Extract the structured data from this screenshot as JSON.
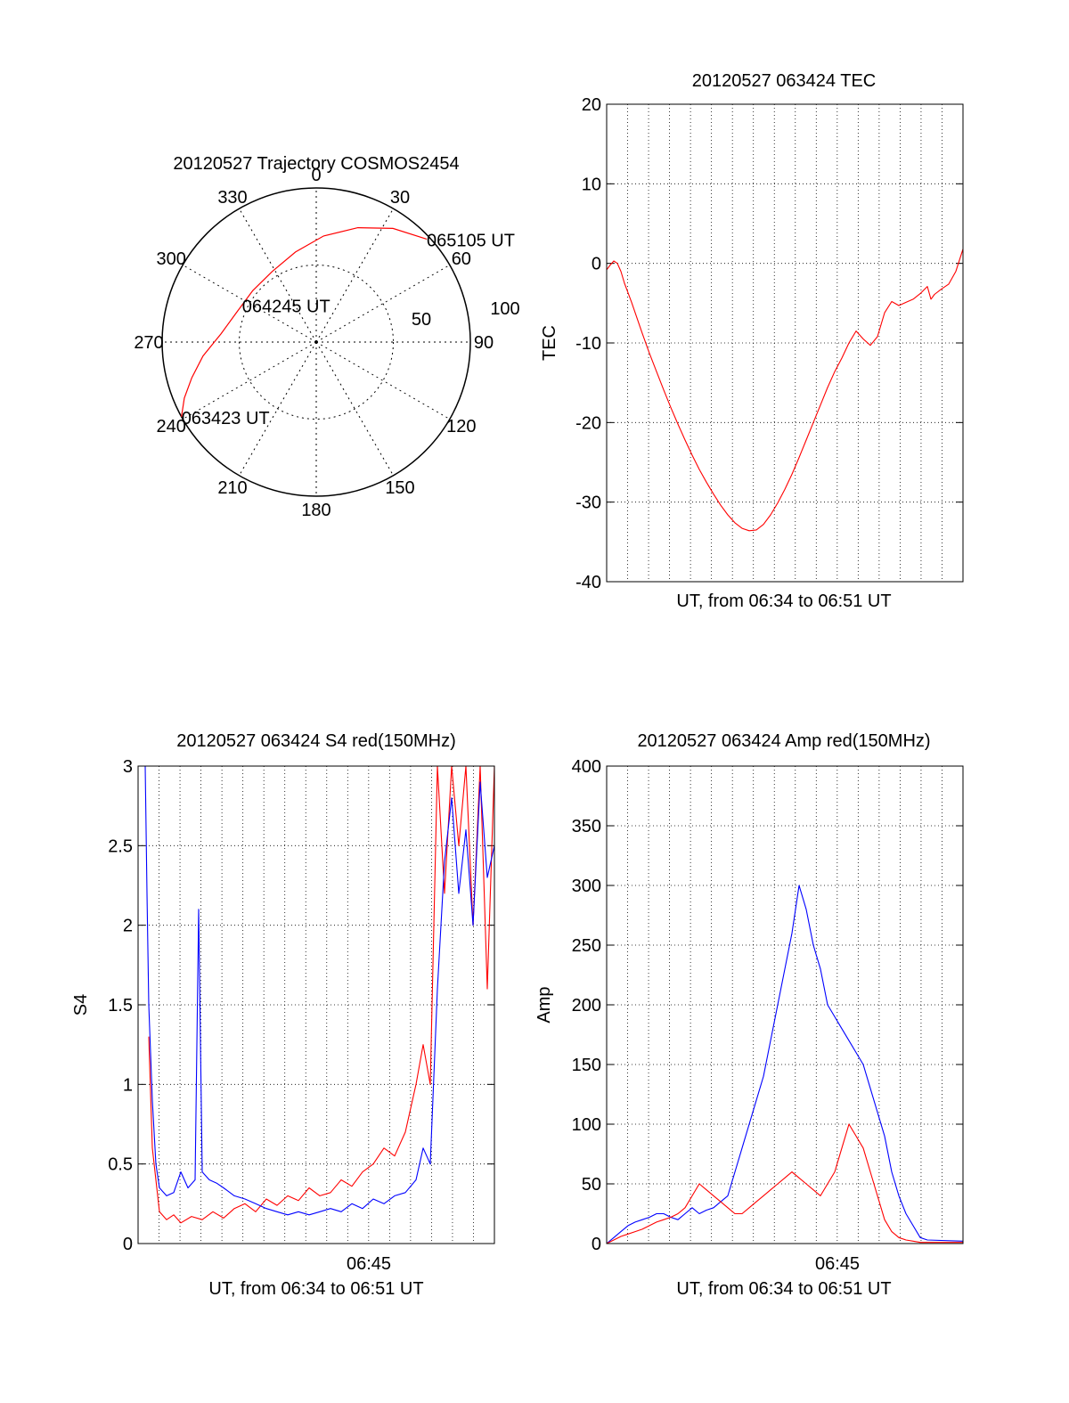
{
  "chart_data": [
    {
      "id": "trajectory",
      "type": "polar",
      "title": "20120527 Trajectory COSMOS2454",
      "azimuth_labels": [
        "0",
        "30",
        "60",
        "90",
        "120",
        "150",
        "180",
        "210",
        "240",
        "270",
        "300",
        "330"
      ],
      "ring_labels": [
        "50",
        "100"
      ],
      "rmax": 100,
      "rings": [
        50,
        100
      ],
      "trajectory_color": "#ff0000",
      "trajectory": [
        {
          "az": 241,
          "el": 100
        },
        {
          "az": 247,
          "el": 93
        },
        {
          "az": 254,
          "el": 84
        },
        {
          "az": 263,
          "el": 74
        },
        {
          "az": 275,
          "el": 62
        },
        {
          "az": 291,
          "el": 55
        },
        {
          "az": 309,
          "el": 53
        },
        {
          "az": 328,
          "el": 54
        },
        {
          "az": 347,
          "el": 60
        },
        {
          "az": 4,
          "el": 69
        },
        {
          "az": 20,
          "el": 79
        },
        {
          "az": 34,
          "el": 89
        },
        {
          "az": 47,
          "el": 98
        }
      ],
      "annotations": [
        {
          "label": "063423 UT",
          "az": 241,
          "el": 100
        },
        {
          "label": "064245 UT",
          "az": 309,
          "el": 53
        },
        {
          "label": "065105 UT",
          "az": 47,
          "el": 98
        }
      ]
    },
    {
      "id": "tec",
      "type": "line",
      "title": "20120527 063424 TEC",
      "xlabel": "UT, from 06:34 to 06:51 UT",
      "ylabel": "TEC",
      "ylim": [
        -40,
        20
      ],
      "yticks": [
        20,
        10,
        0,
        -10,
        -20,
        -30,
        -40
      ],
      "xlim": [
        0,
        1000
      ],
      "grid": true,
      "series": [
        {
          "color": "#ff0000",
          "x": [
            0,
            10,
            20,
            30,
            40,
            50,
            60,
            70,
            80,
            90,
            100,
            120,
            140,
            160,
            180,
            200,
            220,
            240,
            260,
            280,
            300,
            320,
            340,
            360,
            380,
            400,
            420,
            440,
            460,
            480,
            500,
            520,
            540,
            560,
            580,
            600,
            620,
            640,
            660,
            680,
            700,
            720,
            740,
            760,
            780,
            800,
            820,
            840,
            860,
            880,
            900,
            910,
            920,
            940,
            960,
            980,
            1000
          ],
          "y": [
            -0.8,
            -0.2,
            0.3,
            0.0,
            -1.0,
            -2.5,
            -3.7,
            -4.9,
            -6.2,
            -7.5,
            -8.8,
            -11.3,
            -13.6,
            -15.9,
            -18.1,
            -20.2,
            -22.2,
            -24.1,
            -25.9,
            -27.5,
            -29.0,
            -30.4,
            -31.6,
            -32.6,
            -33.3,
            -33.6,
            -33.5,
            -32.8,
            -31.6,
            -30.1,
            -28.4,
            -26.5,
            -24.4,
            -22.2,
            -20.0,
            -17.8,
            -15.6,
            -13.6,
            -11.9,
            -10.0,
            -8.5,
            -9.5,
            -10.3,
            -9.2,
            -6.2,
            -4.8,
            -5.3,
            -4.9,
            -4.5,
            -3.8,
            -2.9,
            -4.5,
            -3.9,
            -3.2,
            -2.6,
            -1.0,
            1.8
          ]
        }
      ]
    },
    {
      "id": "s4",
      "type": "line",
      "title": "20120527 063424 S4 red(150MHz)",
      "xlabel": "UT, from 06:34 to 06:51 UT",
      "ylabel": "S4",
      "ylim": [
        0,
        3
      ],
      "yticks": [
        3,
        2.5,
        2,
        1.5,
        1,
        0.5,
        0
      ],
      "ytick_labels": [
        "3",
        "2.5",
        "2",
        "1.5",
        "1",
        "0.5",
        "0"
      ],
      "xlim": [
        0,
        1000
      ],
      "xtick_label": "06:45",
      "xtick_pos": 647,
      "grid": true,
      "series": [
        {
          "color": "#ff0000",
          "x": [
            30,
            40,
            60,
            80,
            100,
            120,
            150,
            180,
            210,
            240,
            270,
            300,
            330,
            360,
            390,
            420,
            450,
            480,
            510,
            540,
            570,
            600,
            630,
            660,
            690,
            720,
            750,
            780,
            800,
            820,
            840,
            860,
            880,
            900,
            920,
            940,
            960,
            980,
            1000
          ],
          "y": [
            1.3,
            0.6,
            0.2,
            0.15,
            0.18,
            0.13,
            0.17,
            0.15,
            0.2,
            0.16,
            0.22,
            0.25,
            0.2,
            0.28,
            0.24,
            0.3,
            0.27,
            0.35,
            0.3,
            0.32,
            0.4,
            0.36,
            0.45,
            0.5,
            0.6,
            0.55,
            0.7,
            1.0,
            1.25,
            1.0,
            3.0,
            2.2,
            3.0,
            2.5,
            3.0,
            2.0,
            3.0,
            1.6,
            3.0
          ]
        },
        {
          "color": "#0000ff",
          "x": [
            20,
            25,
            30,
            40,
            50,
            60,
            80,
            100,
            120,
            140,
            160,
            170,
            180,
            200,
            220,
            240,
            270,
            300,
            330,
            360,
            390,
            420,
            450,
            480,
            510,
            540,
            570,
            600,
            630,
            660,
            690,
            720,
            750,
            780,
            800,
            820,
            840,
            860,
            880,
            900,
            920,
            940,
            960,
            980,
            1000
          ],
          "y": [
            3.0,
            2.2,
            1.5,
            0.9,
            0.5,
            0.35,
            0.3,
            0.32,
            0.45,
            0.35,
            0.4,
            2.1,
            0.45,
            0.4,
            0.38,
            0.35,
            0.3,
            0.28,
            0.25,
            0.22,
            0.2,
            0.18,
            0.2,
            0.18,
            0.2,
            0.22,
            0.2,
            0.25,
            0.22,
            0.28,
            0.25,
            0.3,
            0.32,
            0.4,
            0.6,
            0.5,
            1.6,
            2.4,
            2.8,
            2.2,
            2.6,
            2.0,
            2.9,
            2.3,
            2.5
          ]
        }
      ]
    },
    {
      "id": "amp",
      "type": "line",
      "title": "20120527 063424 Amp red(150MHz)",
      "xlabel": "UT, from 06:34 to 06:51 UT",
      "ylabel": "Amp",
      "ylim": [
        0,
        400
      ],
      "yticks": [
        400,
        350,
        300,
        250,
        200,
        150,
        100,
        50,
        0
      ],
      "xlim": [
        0,
        1000
      ],
      "xtick_label": "06:45",
      "xtick_pos": 647,
      "grid": true,
      "series": [
        {
          "color": "#0000ff",
          "x": [
            0,
            20,
            40,
            60,
            80,
            100,
            120,
            140,
            160,
            180,
            200,
            220,
            240,
            260,
            280,
            300,
            320,
            340,
            360,
            380,
            400,
            420,
            440,
            460,
            480,
            500,
            520,
            540,
            560,
            580,
            600,
            620,
            640,
            660,
            680,
            700,
            720,
            740,
            760,
            780,
            800,
            820,
            840,
            860,
            880,
            900,
            1000
          ],
          "y": [
            0,
            5,
            10,
            15,
            18,
            20,
            22,
            25,
            25,
            22,
            20,
            25,
            30,
            25,
            28,
            30,
            35,
            40,
            60,
            80,
            100,
            120,
            140,
            170,
            200,
            230,
            260,
            300,
            280,
            250,
            230,
            200,
            190,
            180,
            170,
            160,
            150,
            130,
            110,
            90,
            60,
            40,
            25,
            15,
            5,
            3,
            2
          ]
        },
        {
          "color": "#ff0000",
          "x": [
            0,
            20,
            40,
            60,
            80,
            100,
            120,
            140,
            160,
            180,
            200,
            220,
            240,
            260,
            280,
            300,
            320,
            340,
            360,
            380,
            400,
            420,
            440,
            460,
            480,
            500,
            520,
            540,
            560,
            580,
            600,
            620,
            640,
            660,
            680,
            700,
            720,
            740,
            760,
            780,
            800,
            820,
            840,
            860,
            880,
            900,
            1000
          ],
          "y": [
            0,
            3,
            6,
            8,
            10,
            12,
            15,
            18,
            20,
            22,
            25,
            30,
            40,
            50,
            45,
            40,
            35,
            30,
            25,
            25,
            30,
            35,
            40,
            45,
            50,
            55,
            60,
            55,
            50,
            45,
            40,
            50,
            60,
            80,
            100,
            90,
            80,
            60,
            40,
            20,
            10,
            5,
            3,
            2,
            1,
            1,
            1
          ]
        }
      ]
    }
  ]
}
